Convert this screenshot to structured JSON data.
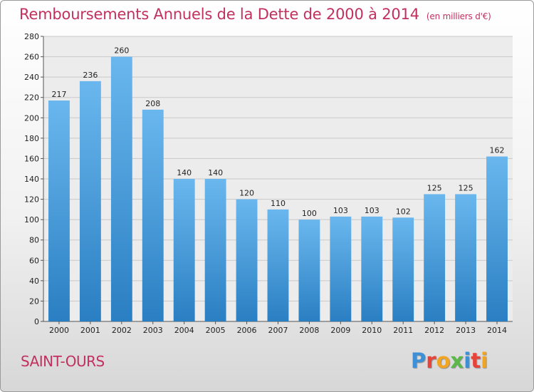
{
  "chart_data": {
    "type": "bar",
    "title": "Remboursements Annuels de la Dette de 2000 à 2014",
    "unit_note": "(en milliers d'€)",
    "categories": [
      "2000",
      "2001",
      "2002",
      "2003",
      "2004",
      "2005",
      "2006",
      "2007",
      "2008",
      "2009",
      "2010",
      "2011",
      "2012",
      "2013",
      "2014"
    ],
    "values": [
      217,
      236,
      260,
      208,
      140,
      140,
      120,
      110,
      100,
      103,
      103,
      102,
      125,
      125,
      162
    ],
    "ylim": [
      0,
      280
    ],
    "yticks": [
      0,
      20,
      40,
      60,
      80,
      100,
      120,
      140,
      160,
      180,
      200,
      220,
      240,
      260,
      280
    ],
    "grid": true,
    "bar_color_top": "#6ab7ee",
    "bar_color_bottom": "#2a7fc2"
  },
  "footer": {
    "city": "SAINT-OURS",
    "logo_letters": [
      {
        "ch": "P",
        "color": "#3d8fd6"
      },
      {
        "ch": "r",
        "color": "#e8433a"
      },
      {
        "ch": "o",
        "color": "#f2a423"
      },
      {
        "ch": "x",
        "color": "#5cb848"
      },
      {
        "ch": "i",
        "color": "#3d8fd6"
      },
      {
        "ch": "t",
        "color": "#e8433a"
      },
      {
        "ch": "i",
        "color": "#f2a423"
      }
    ]
  }
}
